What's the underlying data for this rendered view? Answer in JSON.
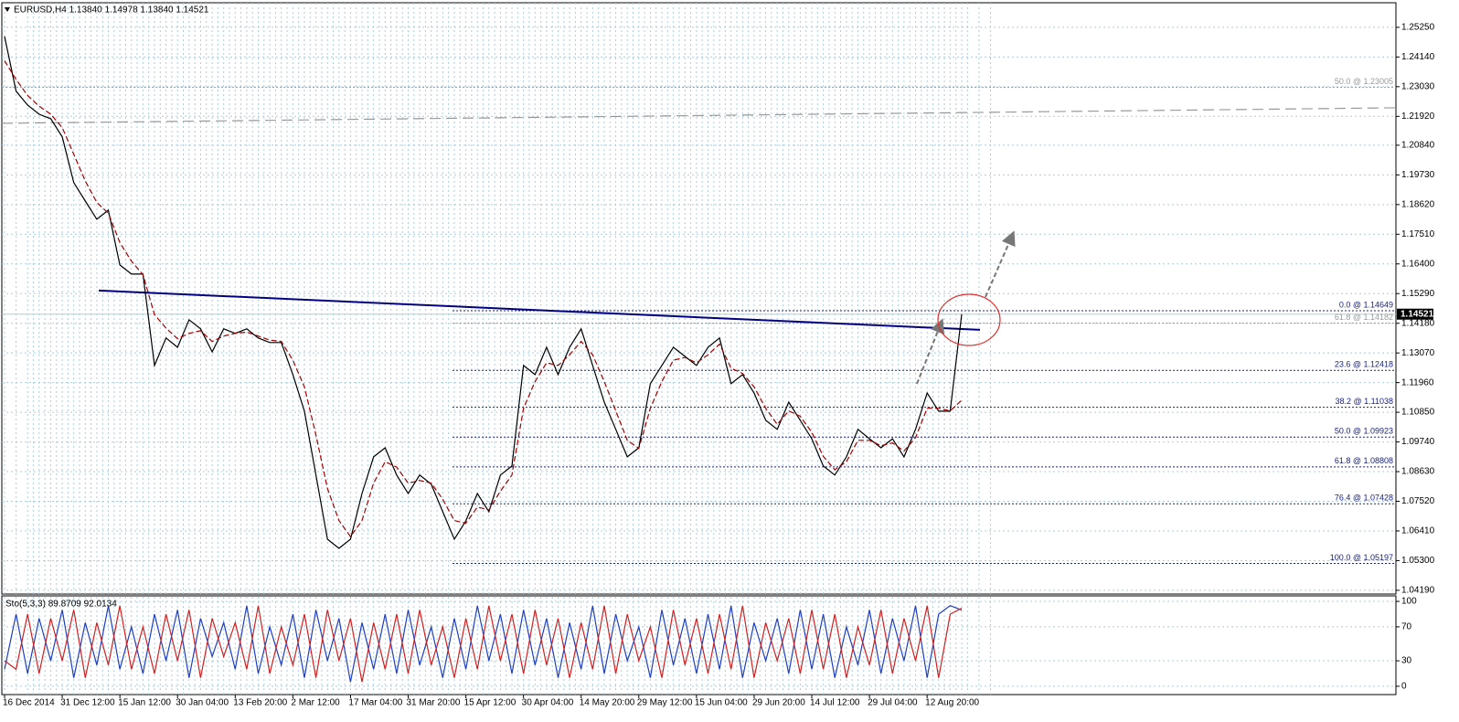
{
  "chart_data": [
    {
      "type": "line",
      "title": "EURUSD,H4  1.13840 1.14978 1.13840 1.14521",
      "categories": [
        "16 Dec 2014",
        null,
        null,
        null,
        null,
        "31 Dec 12:00",
        null,
        null,
        null,
        null,
        "15 Jan 12:00",
        null,
        null,
        null,
        null,
        "30 Jan 04:00",
        null,
        null,
        null,
        null,
        "13 Feb 20:00",
        null,
        null,
        null,
        null,
        "2 Mar 12:00",
        null,
        null,
        null,
        null,
        "17 Mar 04:00",
        null,
        null,
        null,
        null,
        "31 Mar 20:00",
        null,
        null,
        null,
        null,
        "15 Apr 12:00",
        null,
        null,
        null,
        null,
        "30 Apr 04:00",
        null,
        null,
        null,
        null,
        "14 May 20:00",
        null,
        null,
        null,
        null,
        "29 May 12:00",
        null,
        null,
        null,
        null,
        "15 Jun 04:00",
        null,
        null,
        null,
        null,
        "29 Jun 20:00",
        null,
        null,
        null,
        null,
        "14 Jul 12:00",
        null,
        null,
        null,
        null,
        "29 Jul 04:00",
        null,
        null,
        null,
        null,
        "12 Aug 20:00",
        null,
        null,
        null
      ],
      "series": [
        {
          "color": "#000000",
          "values": [
            1.2491,
            1.2286,
            1.2234,
            1.22,
            1.2183,
            1.2115,
            1.1944,
            1.1875,
            1.1807,
            1.1841,
            1.1636,
            1.1602,
            1.1602,
            1.126,
            1.1363,
            1.1328,
            1.1431,
            1.1397,
            1.1311,
            1.1397,
            1.138,
            1.1397,
            1.1363,
            1.1346,
            1.1346,
            1.1226,
            1.1089,
            1.085,
            1.061,
            1.0576,
            1.061,
            1.0781,
            1.0918,
            1.0952,
            1.085,
            1.0781,
            1.085,
            1.0816,
            1.0713,
            1.061,
            1.0679,
            1.0781,
            1.0713,
            1.085,
            1.0884,
            1.126,
            1.1226,
            1.1328,
            1.1226,
            1.1328,
            1.1397,
            1.126,
            1.1123,
            1.1021,
            1.0918,
            1.0952,
            1.1192,
            1.126,
            1.1328,
            1.1294,
            1.126,
            1.1328,
            1.1363,
            1.1192,
            1.1226,
            1.1157,
            1.1055,
            1.1021,
            1.1123,
            1.1055,
            1.0986,
            1.0884,
            1.085,
            1.0918,
            1.1021,
            1.0986,
            1.0952,
            1.0986,
            1.0918,
            1.1021,
            1.1157,
            1.1089,
            1.1089,
            1.1452
          ]
        },
        {
          "color": "#a00000",
          "dash": true,
          "values": [
            1.24,
            1.233,
            1.227,
            1.223,
            1.22,
            1.215,
            1.205,
            1.195,
            1.187,
            1.183,
            1.172,
            1.165,
            1.16,
            1.145,
            1.14,
            1.136,
            1.138,
            1.139,
            1.135,
            1.137,
            1.138,
            1.1385,
            1.137,
            1.1355,
            1.135,
            1.128,
            1.118,
            1.1,
            1.08,
            1.068,
            1.062,
            1.068,
            1.082,
            1.09,
            1.088,
            1.082,
            1.083,
            1.082,
            1.076,
            1.068,
            1.067,
            1.073,
            1.072,
            1.079,
            1.085,
            1.11,
            1.12,
            1.127,
            1.126,
            1.13,
            1.135,
            1.13,
            1.12,
            1.109,
            1.098,
            1.095,
            1.11,
            1.12,
            1.128,
            1.129,
            1.127,
            1.13,
            1.134,
            1.125,
            1.123,
            1.118,
            1.11,
            1.104,
            1.109,
            1.107,
            1.101,
            1.092,
            1.087,
            1.09,
            1.098,
            1.098,
            1.096,
            1.097,
            1.094,
            1.099,
            1.11,
            1.11,
            1.109,
            1.113
          ]
        }
      ],
      "ylim": [
        1.0405,
        1.2617
      ],
      "yticks": [
        {
          "value": 1.2525,
          "label": "1.25250"
        },
        {
          "value": 1.2414,
          "label": "1.24140"
        },
        {
          "value": 1.2303,
          "label": "1.23030"
        },
        {
          "value": 1.2192,
          "label": "1.21920"
        },
        {
          "value": 1.2084,
          "label": "1.20840"
        },
        {
          "value": 1.1973,
          "label": "1.19730"
        },
        {
          "value": 1.1862,
          "label": "1.18620"
        },
        {
          "value": 1.1751,
          "label": "1.17510"
        },
        {
          "value": 1.164,
          "label": "1.16400"
        },
        {
          "value": 1.1529,
          "label": "1.15290"
        },
        {
          "value": 1.1418,
          "label": "1.14180"
        },
        {
          "value": 1.1307,
          "label": "1.13070"
        },
        {
          "value": 1.1196,
          "label": "1.11960"
        },
        {
          "value": 1.1085,
          "label": "1.10850"
        },
        {
          "value": 1.0974,
          "label": "1.09740"
        },
        {
          "value": 1.0863,
          "label": "1.08630"
        },
        {
          "value": 1.0752,
          "label": "1.07520"
        },
        {
          "value": 1.0641,
          "label": "1.06410"
        },
        {
          "value": 1.053,
          "label": "1.05300"
        },
        {
          "value": 1.0419,
          "label": "1.04190"
        }
      ],
      "grid": true,
      "last_price": 1.14521,
      "levels": [
        {
          "label": "50.0 @ 1.23005",
          "value": 1.23005,
          "color": "#999999"
        },
        {
          "label": "0.0 @ 1.14649",
          "value": 1.14649,
          "color": "#1a237e"
        },
        {
          "label": "61.8 @ 1.14182",
          "value": 1.14182,
          "color": "#999999"
        },
        {
          "label": "23.6 @ 1.12418",
          "value": 1.12418,
          "color": "#1a237e"
        },
        {
          "label": "38.2 @ 1.11038",
          "value": 1.11038,
          "color": "#1a237e"
        },
        {
          "label": "50.0 @ 1.09923",
          "value": 1.09923,
          "color": "#1a237e"
        },
        {
          "label": "61.8 @ 1.08808",
          "value": 1.08808,
          "color": "#1a237e"
        },
        {
          "label": "76.4 @ 1.07428",
          "value": 1.07428,
          "color": "#1a237e"
        },
        {
          "label": "100.0 @ 1.05197",
          "value": 1.05197,
          "color": "#1a237e"
        }
      ],
      "lines": [
        {
          "color": "#000080",
          "values": [
            1.15404,
            1.13934
          ]
        },
        {
          "color": "#999999",
          "values": [
            1.2166,
            1.22241
          ]
        }
      ]
    },
    {
      "type": "line",
      "title": "Sto(5,3,3) 89.8709 92.0134",
      "series": [
        {
          "color": "#1f3fbf",
          "values": [
            20,
            85,
            15,
            80,
            30,
            90,
            10,
            75,
            25,
            95,
            20,
            70,
            15,
            85,
            30,
            90,
            10,
            80,
            35,
            75,
            20,
            95,
            15,
            70,
            25,
            85,
            10,
            90,
            30,
            80,
            5,
            75,
            20,
            85,
            15,
            90,
            25,
            70,
            10,
            80,
            20,
            95,
            30,
            85,
            15,
            90,
            25,
            80,
            10,
            75,
            20,
            95,
            15,
            85,
            30,
            70,
            10,
            90,
            25,
            80,
            15,
            85,
            20,
            95,
            10,
            75,
            30,
            80,
            15,
            90,
            20,
            85,
            10,
            70,
            25,
            90,
            15,
            80,
            30,
            95,
            10,
            85,
            95,
            89.8709
          ]
        },
        {
          "color": "#d02020",
          "values": [
            30,
            20,
            85,
            15,
            80,
            30,
            90,
            10,
            75,
            25,
            95,
            20,
            70,
            15,
            85,
            30,
            90,
            10,
            80,
            35,
            75,
            20,
            95,
            15,
            70,
            25,
            85,
            10,
            90,
            30,
            80,
            5,
            75,
            20,
            85,
            15,
            90,
            25,
            70,
            10,
            80,
            20,
            95,
            30,
            85,
            15,
            90,
            25,
            80,
            10,
            75,
            20,
            95,
            15,
            85,
            30,
            70,
            10,
            90,
            25,
            80,
            15,
            85,
            20,
            95,
            10,
            75,
            30,
            80,
            15,
            90,
            20,
            85,
            10,
            70,
            25,
            90,
            15,
            80,
            30,
            95,
            10,
            85,
            92.0134
          ]
        }
      ],
      "ylim": [
        -9.8,
        106.5
      ],
      "yticks": [
        0,
        30,
        70,
        100
      ]
    }
  ]
}
